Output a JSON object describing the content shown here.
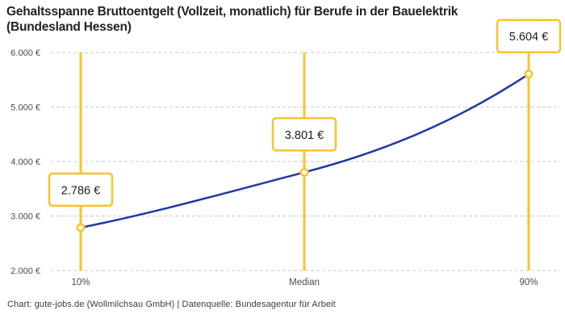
{
  "header": {
    "title_line1": "Gehaltsspanne Bruttoentgelt (Vollzeit, monatlich) für Berufe in der Bauelektrik",
    "title_line2": "(Bundesland Hessen)"
  },
  "footer": {
    "text": "Chart: gute-jobs.de (Wollmilchsau GmbH) | Datenquelle: Bundesagentur für Arbeit"
  },
  "colors": {
    "accent_yellow": "#FAC32C",
    "line_blue": "#2039A5",
    "grid": "#CBCBCB",
    "axis_text": "#4B4B4B",
    "label_text": "#1D1D1D",
    "box_fill": "#FFFFFF"
  },
  "chart_data": {
    "type": "line",
    "title": "Gehaltsspanne Bruttoentgelt (Vollzeit, monatlich) für Berufe in der Bauelektrik (Bundesland Hessen)",
    "categories": [
      "10%",
      "Median",
      "90%"
    ],
    "values": [
      2786,
      3801,
      5604
    ],
    "point_labels": [
      "2.786 €",
      "3.801 €",
      "5.604 €"
    ],
    "series": [
      {
        "name": "Bruttoentgelt",
        "values": [
          2786,
          3801,
          5604
        ]
      }
    ],
    "y_ticks": {
      "values": [
        2000,
        3000,
        4000,
        5000,
        6000
      ],
      "labels": [
        "2.000 €",
        "3.000 €",
        "4.000 €",
        "5.000 €",
        "6.000 €"
      ]
    },
    "ylim": [
      2000,
      6000
    ],
    "xlabel": "",
    "ylabel": "",
    "grid": true,
    "legend": false,
    "marker_style": "open-circle",
    "source": "Chart: gute-jobs.de (Wollmilchsau GmbH) | Datenquelle: Bundesagentur für Arbeit"
  }
}
